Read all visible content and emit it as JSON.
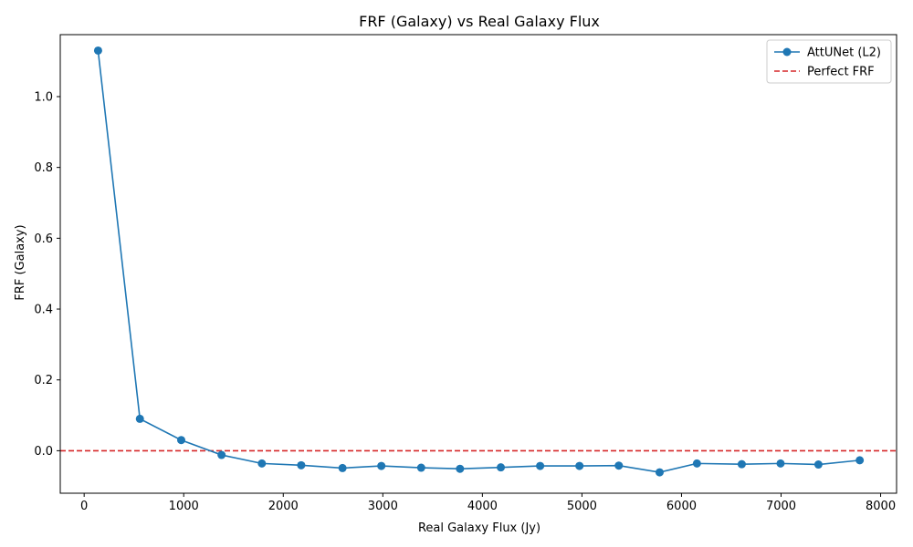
{
  "chart_data": {
    "type": "line",
    "title": "FRF (Galaxy) vs Real Galaxy Flux",
    "xlabel": "Real Galaxy Flux (Jy)",
    "ylabel": "FRF (Galaxy)",
    "xlim": [
      -240,
      8160
    ],
    "ylim": [
      -0.12,
      1.175
    ],
    "xticks": [
      0,
      1000,
      2000,
      3000,
      4000,
      5000,
      6000,
      7000,
      8000
    ],
    "xtick_labels": [
      "0",
      "1000",
      "2000",
      "3000",
      "4000",
      "5000",
      "6000",
      "7000",
      "8000"
    ],
    "yticks": [
      0.0,
      0.2,
      0.4,
      0.6,
      0.8,
      1.0
    ],
    "ytick_labels": [
      "0.0",
      "0.2",
      "0.4",
      "0.6",
      "0.8",
      "1.0"
    ],
    "grid": false,
    "legend_position": "top-right",
    "series": [
      {
        "name": "AttUNet (L2)",
        "color": "#1f77b4",
        "style": "solid",
        "marker": "circle",
        "x": [
          140,
          560,
          975,
          1380,
          1785,
          2180,
          2595,
          2985,
          3385,
          3775,
          4185,
          4580,
          4975,
          5370,
          5780,
          6155,
          6605,
          6995,
          7375,
          7790
        ],
        "y": [
          1.13,
          0.09,
          0.03,
          -0.012,
          -0.036,
          -0.041,
          -0.049,
          -0.043,
          -0.048,
          -0.051,
          -0.047,
          -0.043,
          -0.043,
          -0.042,
          -0.061,
          -0.036,
          -0.038,
          -0.036,
          -0.039,
          -0.027
        ]
      },
      {
        "name": "Perfect FRF",
        "color": "#d62728",
        "style": "dashed",
        "constant_y": 0.0
      }
    ]
  }
}
